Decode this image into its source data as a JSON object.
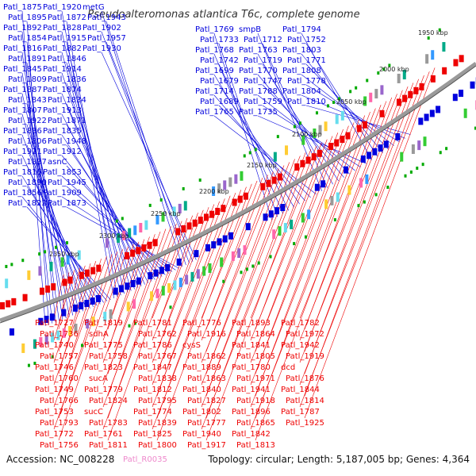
{
  "title": "Pseudoalteromonas atlantica T6c, complete genome",
  "footer": {
    "accession": "Accession: NC_008228",
    "rna_tag": "Patl_R0035",
    "topology": "Topology: circular; Length: 5,187,005 bp; Genes: 4,364"
  },
  "colors": {
    "forward_gene": "#0000dd",
    "reverse_gene": "#ee0000",
    "rna_gene": "#ee88cc",
    "backbone": "#888888",
    "cog_marks": [
      "#33cc33",
      "#66ddee",
      "#9966cc",
      "#ffcc33",
      "#3399ff",
      "#ff66aa",
      "#999999",
      "#00aa88"
    ]
  },
  "kbp_ticks": [
    "1950 kbp",
    "2000 kbp",
    "2050 kbp",
    "2100 kbp",
    "2150 kbp",
    "2200 kbp",
    "2250 kbp",
    "2300 kbp",
    "2350 kbp"
  ],
  "forward_labels": [
    "Patl_1875",
    "Patl_1895",
    "Patl_1892",
    "Patl_1854",
    "Patl_1816",
    "Patl_1891",
    "Patl_1845",
    "Patl_1809",
    "Patl_1887",
    "Patl_1843",
    "Patl_1807",
    "Patl_1922",
    "Patl_1886",
    "Patl_1806",
    "Patl_1921",
    "Patl_1837",
    "Patl_1815",
    "Patl_1890",
    "Patl_1856",
    "Patl_1822",
    "Patl_1920",
    "Patl_1872",
    "Patl_1828",
    "Patl_1915",
    "Patl_1882",
    "Patl_1846",
    "Patl_1914",
    "Patl_1836",
    "Patl_1874",
    "Patl_1834",
    "Patl_1913",
    "Patl_1871",
    "Patl_1835",
    "Patl_1948",
    "Patl_1912",
    "asnC",
    "Patl_1853",
    "Patl_1945",
    "Patl_1909",
    "Patl_1873",
    "metG",
    "Patl_1943",
    "Patl_1902",
    "Patl_1957",
    "Patl_1930",
    "Patl_1769",
    "Patl_1733",
    "Patl_1768",
    "Patl_1742",
    "Patl_1699",
    "Patl_1679",
    "Patl_1714",
    "Patl_1689",
    "Patl_1765",
    "smpB",
    "Patl_1712",
    "Patl_1763",
    "Patl_1719",
    "Patl_1770",
    "Patl_1747",
    "Patl_1788",
    "Patl_1759",
    "Patl_1735",
    "Patl_1794",
    "Patl_1752",
    "Patl_1803",
    "Patl_1771",
    "Patl_1808",
    "Patl_1778",
    "Patl_1804",
    "Patl_1810"
  ],
  "reverse_labels": [
    "Patl_1727",
    "Patl_1736",
    "Patl_1740",
    "Patl_1757",
    "Patl_1746",
    "Patl_1760",
    "Patl_1749",
    "Patl_1766",
    "Patl_1753",
    "Patl_1793",
    "Patl_1772",
    "Patl_1756",
    "Patl_1819",
    "sdhA",
    "Patl_1775",
    "Patl_1758",
    "Patl_1823",
    "sucA",
    "Patl_1779",
    "Patl_1824",
    "sucC",
    "Patl_1783",
    "Patl_1761",
    "Patl_1811",
    "Patl_1781",
    "Patl_1762",
    "Patl_1786",
    "Patl_1767",
    "Patl_1847",
    "Patl_1838",
    "Patl_1812",
    "Patl_1795",
    "Patl_1774",
    "Patl_1839",
    "Patl_1825",
    "Patl_1800",
    "Patl_1776",
    "Patl_1916",
    "cysS",
    "Patl_1862",
    "Patl_1889",
    "Patl_1863",
    "Patl_1840",
    "Patl_1827",
    "Patl_1802",
    "Patl_1777",
    "Patl_1940",
    "Patl_1917",
    "Patl_1893",
    "Patl_1864",
    "Patl_1841",
    "Patl_1805",
    "Patl_1780",
    "Patl_1971",
    "Patl_1941",
    "Patl_1918",
    "Patl_1896",
    "Patl_1865",
    "Patl_1842",
    "Patl_1813",
    "Patl_1782",
    "Patl_1972",
    "Patl_1942",
    "Patl_1919",
    "dcd",
    "Patl_1876",
    "Patl_1844",
    "Patl_1814",
    "Patl_1787",
    "Patl_1925"
  ]
}
